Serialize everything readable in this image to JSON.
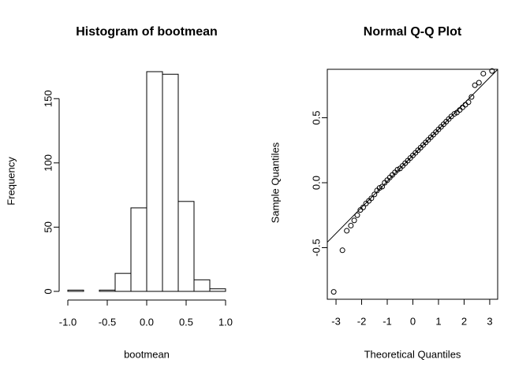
{
  "chart_data": [
    {
      "type": "histogram",
      "title": "Histogram of bootmean",
      "xlabel": "bootmean",
      "ylabel": "Frequency",
      "bins": [
        -1.0,
        -0.8,
        -0.6,
        -0.4,
        -0.2,
        0.0,
        0.2,
        0.4,
        0.6,
        0.8,
        1.0
      ],
      "counts": [
        1,
        0,
        1,
        14,
        65,
        171,
        169,
        70,
        9,
        2
      ],
      "color": "#ffffff",
      "xlim": [
        -1.0,
        1.0
      ],
      "xticks": [
        {
          "value": -1.0,
          "label": "-1.0"
        },
        {
          "value": -0.5,
          "label": "-0.5"
        },
        {
          "value": 0.0,
          "label": "0.0"
        },
        {
          "value": 0.5,
          "label": "0.5"
        },
        {
          "value": 1.0,
          "label": "1.0"
        }
      ],
      "ylim": [
        0,
        171
      ],
      "yticks": [
        0,
        50,
        100,
        150
      ]
    },
    {
      "type": "qq",
      "title": "Normal Q-Q Plot",
      "xlabel": "Theoretical Quantiles",
      "ylabel": "Sample Quantiles",
      "x": [
        -3.09,
        -2.75,
        -2.58,
        -2.42,
        -2.29,
        -2.17,
        -2.05,
        -1.94,
        -1.83,
        -1.72,
        -1.62,
        -1.5,
        -1.4,
        -1.3,
        -1.2,
        -1.1,
        -1.0,
        -0.9,
        -0.8,
        -0.7,
        -0.6,
        -0.5,
        -0.4,
        -0.3,
        -0.2,
        -0.1,
        0,
        0.1,
        0.2,
        0.3,
        0.4,
        0.5,
        0.6,
        0.7,
        0.8,
        0.9,
        1.0,
        1.1,
        1.2,
        1.3,
        1.4,
        1.5,
        1.62,
        1.72,
        1.83,
        1.94,
        2.05,
        2.17,
        2.29,
        2.42,
        2.58,
        2.75,
        3.09
      ],
      "values": [
        -0.84,
        -0.52,
        -0.37,
        -0.33,
        -0.29,
        -0.25,
        -0.21,
        -0.19,
        -0.16,
        -0.14,
        -0.12,
        -0.09,
        -0.06,
        -0.04,
        -0.03,
        0.0,
        0.02,
        0.04,
        0.06,
        0.08,
        0.1,
        0.11,
        0.13,
        0.15,
        0.17,
        0.19,
        0.21,
        0.23,
        0.25,
        0.27,
        0.29,
        0.31,
        0.33,
        0.35,
        0.37,
        0.39,
        0.41,
        0.43,
        0.45,
        0.47,
        0.49,
        0.51,
        0.53,
        0.54,
        0.56,
        0.58,
        0.6,
        0.62,
        0.66,
        0.75,
        0.77,
        0.84,
        0.86
      ],
      "line": {
        "intercept": 0.21,
        "slope": 0.2
      },
      "color": "#000000",
      "xlim": [
        -3.34,
        3.31
      ],
      "xticks": [
        -3,
        -2,
        -1,
        0,
        1,
        2,
        3
      ],
      "ylim": [
        -0.897,
        0.873
      ],
      "yticks": [
        -0.5,
        {
          "value": 0.0,
          "label": "0.0"
        },
        0.5
      ]
    }
  ]
}
